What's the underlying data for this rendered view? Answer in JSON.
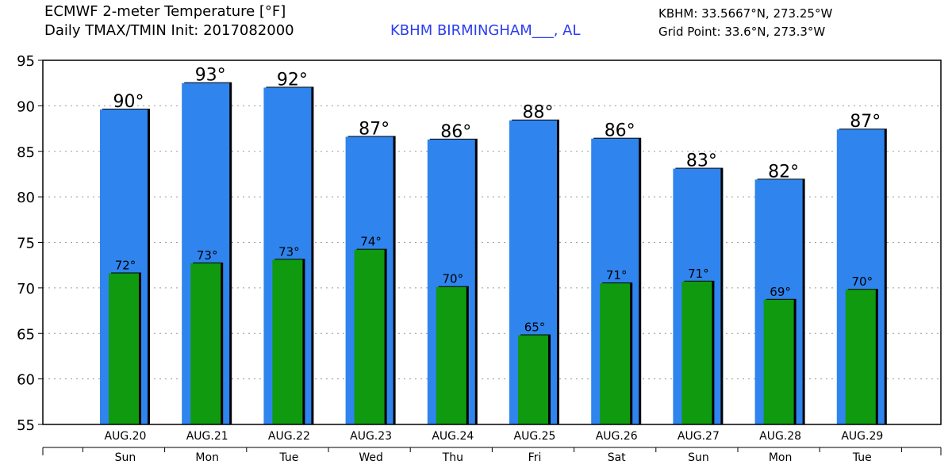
{
  "header": {
    "title_line1": "ECMWF 2-meter Temperature [°F]",
    "title_line2": "Daily TMAX/TMIN Init: 2017082000",
    "station": "KBHM BIRMINGHAM___, AL",
    "station_coords": "KBHM: 33.5667°N, 273.25°W",
    "grid_point": "Grid Point: 33.6°N, 273.3°W"
  },
  "colors": {
    "tmax_bar": "#2f84ee",
    "tmin_bar": "#0f9a0f",
    "bar_shadow": "#000000",
    "gridline": "#9a9a9a",
    "station_text": "#2b3cf0"
  },
  "chart_data": {
    "type": "bar",
    "title": "ECMWF 2-meter Temperature [°F]",
    "subtitle": "Daily TMAX/TMIN Init: 2017082000",
    "categories": [
      "AUG.20",
      "AUG.21",
      "AUG.22",
      "AUG.23",
      "AUG.24",
      "AUG.25",
      "AUG.26",
      "AUG.27",
      "AUG.28",
      "AUG.29"
    ],
    "days": [
      "Sun",
      "Mon",
      "Tue",
      "Wed",
      "Thu",
      "Fri",
      "Sat",
      "Sun",
      "Mon",
      "Tue"
    ],
    "series": [
      {
        "key": "tmax",
        "values": [
          89.6,
          92.5,
          92.0,
          86.6,
          86.3,
          88.4,
          86.4,
          83.1,
          81.9,
          87.4
        ],
        "labels": [
          "90°",
          "93°",
          "92°",
          "87°",
          "86°",
          "88°",
          "86°",
          "83°",
          "82°",
          "87°"
        ]
      },
      {
        "key": "tmin",
        "values": [
          71.6,
          72.7,
          73.1,
          74.2,
          70.1,
          64.8,
          70.5,
          70.7,
          68.7,
          69.8
        ],
        "labels": [
          "72°",
          "73°",
          "73°",
          "74°",
          "70°",
          "65°",
          "71°",
          "71°",
          "69°",
          "70°"
        ]
      }
    ],
    "ylim": [
      55,
      95
    ],
    "yticks": [
      55,
      60,
      65,
      70,
      75,
      80,
      85,
      90,
      95
    ],
    "grid": true,
    "xlabel": "",
    "ylabel": ""
  }
}
